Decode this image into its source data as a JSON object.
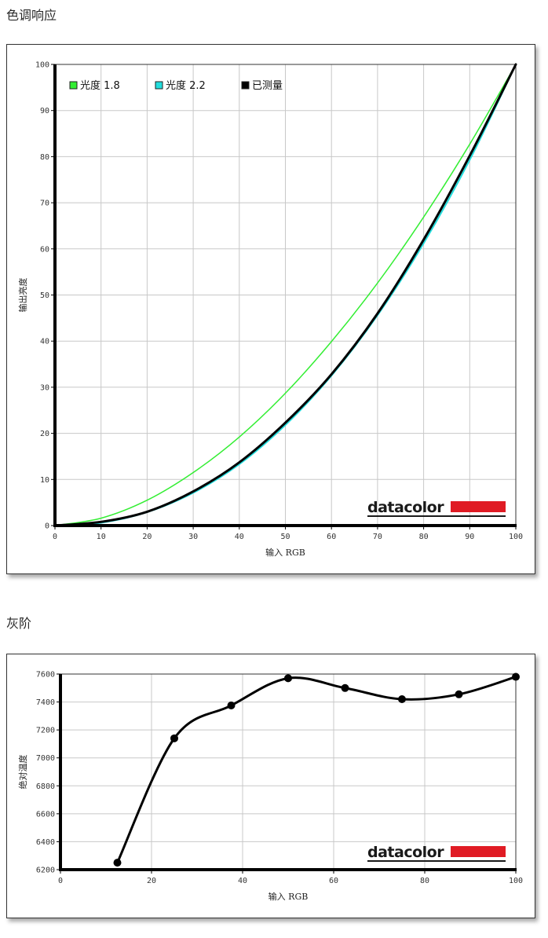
{
  "sections": {
    "tone_response": {
      "title": "色调响应"
    },
    "grayscale": {
      "title": "灰阶"
    }
  },
  "colors": {
    "gamma18": "#33ee33",
    "gamma22": "#22dddd",
    "measured": "#000000",
    "grid": "#c8c8c8",
    "logo_red": "#e01b24"
  },
  "logo": {
    "text": "datacolor"
  },
  "chart_data": [
    {
      "type": "line",
      "title": "色调响应",
      "xlabel": "输入 RGB",
      "ylabel": "输出亮度",
      "xlim": [
        0,
        100
      ],
      "ylim": [
        0,
        100
      ],
      "xticks": [
        "0",
        "10",
        "20",
        "30",
        "40",
        "50",
        "60",
        "70",
        "80",
        "90",
        "100"
      ],
      "yticks": [
        "0",
        "10",
        "20",
        "30",
        "40",
        "50",
        "60",
        "70",
        "80",
        "90",
        "100"
      ],
      "grid": true,
      "legend_position": "top-left",
      "legend": [
        "光度 1.8",
        "光度 2.2",
        "已测量"
      ],
      "x": [
        0,
        10,
        20,
        30,
        40,
        50,
        60,
        70,
        80,
        90,
        100
      ],
      "series": [
        {
          "name": "光度 1.8",
          "color": "#33ee33",
          "values": [
            0,
            1.6,
            5.5,
            11.5,
            19.2,
            28.7,
            39.9,
            52.6,
            66.9,
            82.7,
            100
          ]
        },
        {
          "name": "光度 2.2",
          "color": "#22dddd",
          "values": [
            0,
            0.6,
            2.9,
            7.1,
            13.3,
            21.8,
            32.5,
            45.6,
            61.2,
            79.3,
            100
          ]
        },
        {
          "name": "已测量",
          "color": "#000000",
          "values": [
            0,
            0.8,
            3.0,
            7.4,
            13.7,
            22.3,
            32.8,
            46.0,
            62.0,
            80.2,
            100
          ]
        }
      ]
    },
    {
      "type": "line",
      "title": "灰阶",
      "xlabel": "输入 RGB",
      "ylabel": "绝对温度",
      "xlim": [
        0,
        100
      ],
      "ylim": [
        6200,
        7600
      ],
      "xticks": [
        "0",
        "20",
        "40",
        "60",
        "80",
        "100"
      ],
      "yticks": [
        "6200",
        "6400",
        "6600",
        "6800",
        "7000",
        "7200",
        "7400",
        "7600"
      ],
      "grid": true,
      "x": [
        12.5,
        25,
        37.5,
        50,
        62.5,
        75,
        87.5,
        100
      ],
      "series": [
        {
          "name": "绝对温度",
          "color": "#000000",
          "values": [
            6250,
            7140,
            7375,
            7570,
            7500,
            7420,
            7455,
            7580
          ]
        }
      ]
    }
  ]
}
